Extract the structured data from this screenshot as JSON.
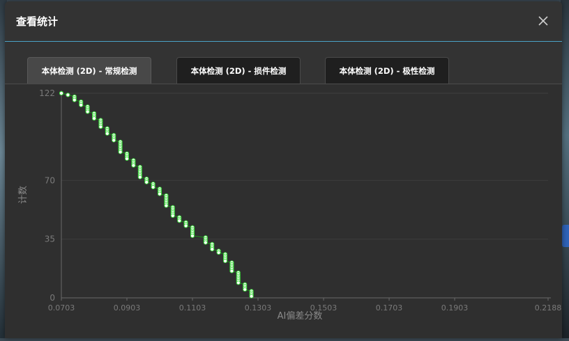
{
  "dialog": {
    "title": "查看统计",
    "close_icon": "close-icon"
  },
  "tabs": [
    {
      "label": "本体检测 (2D) - 常规检测",
      "active": true
    },
    {
      "label": "本体检测 (2D) - 损件检测",
      "active": false
    },
    {
      "label": "本体检测 (2D) - 极性检测",
      "active": false
    }
  ],
  "colors": {
    "accent_line": "#4aa3c8",
    "series_line": "#1f8a1f",
    "point_fill": "#ffffff",
    "point_stroke": "#39d639"
  },
  "chart_data": {
    "type": "scatter",
    "xlabel": "AI偏差分数",
    "ylabel": "计数",
    "xlim": [
      0.0703,
      0.2188
    ],
    "ylim": [
      0,
      122
    ],
    "x_ticks": [
      "0.0703",
      "0.0903",
      "0.1103",
      "0.1303",
      "0.1503",
      "0.1703",
      "0.1903",
      "0.2188"
    ],
    "y_ticks": [
      "0",
      "35",
      "70",
      "122"
    ],
    "x_tick_values": [
      0.0703,
      0.0903,
      0.1103,
      0.1303,
      0.1503,
      0.1703,
      0.1903,
      0.2188
    ],
    "y_tick_values": [
      0,
      35,
      70,
      122
    ],
    "grid": true,
    "points": [
      [
        0.0703,
        122
      ],
      [
        0.0723,
        121
      ],
      [
        0.0743,
        120
      ],
      [
        0.0743,
        119
      ],
      [
        0.0743,
        118
      ],
      [
        0.0763,
        117
      ],
      [
        0.0763,
        116
      ],
      [
        0.0763,
        115
      ],
      [
        0.0783,
        114
      ],
      [
        0.0783,
        113
      ],
      [
        0.0783,
        112
      ],
      [
        0.0783,
        111
      ],
      [
        0.0803,
        110
      ],
      [
        0.0803,
        109
      ],
      [
        0.0803,
        108
      ],
      [
        0.0803,
        107
      ],
      [
        0.0823,
        106
      ],
      [
        0.0823,
        105
      ],
      [
        0.0823,
        104
      ],
      [
        0.0823,
        103
      ],
      [
        0.0823,
        102
      ],
      [
        0.0843,
        101
      ],
      [
        0.0843,
        100
      ],
      [
        0.0843,
        99
      ],
      [
        0.0843,
        98
      ],
      [
        0.0863,
        97
      ],
      [
        0.0863,
        96
      ],
      [
        0.0863,
        95
      ],
      [
        0.0863,
        94
      ],
      [
        0.0883,
        93
      ],
      [
        0.0883,
        92
      ],
      [
        0.0883,
        91
      ],
      [
        0.0883,
        90
      ],
      [
        0.0883,
        89
      ],
      [
        0.0883,
        88
      ],
      [
        0.0883,
        87
      ],
      [
        0.0903,
        86
      ],
      [
        0.0903,
        85
      ],
      [
        0.0903,
        84
      ],
      [
        0.0903,
        83
      ],
      [
        0.0923,
        82
      ],
      [
        0.0923,
        81
      ],
      [
        0.0923,
        80
      ],
      [
        0.0923,
        79
      ],
      [
        0.0943,
        78
      ],
      [
        0.0943,
        77
      ],
      [
        0.0943,
        76
      ],
      [
        0.0943,
        75
      ],
      [
        0.0943,
        74
      ],
      [
        0.0943,
        73
      ],
      [
        0.0943,
        72
      ],
      [
        0.0963,
        71
      ],
      [
        0.0963,
        70
      ],
      [
        0.0963,
        69
      ],
      [
        0.0983,
        68
      ],
      [
        0.0983,
        67
      ],
      [
        0.0983,
        66
      ],
      [
        0.1003,
        65
      ],
      [
        0.1003,
        64
      ],
      [
        0.1003,
        63
      ],
      [
        0.1003,
        62
      ],
      [
        0.1023,
        61
      ],
      [
        0.1023,
        60
      ],
      [
        0.1023,
        59
      ],
      [
        0.1023,
        58
      ],
      [
        0.1023,
        57
      ],
      [
        0.1023,
        56
      ],
      [
        0.1023,
        55
      ],
      [
        0.1043,
        54
      ],
      [
        0.1043,
        53
      ],
      [
        0.1043,
        52
      ],
      [
        0.1043,
        51
      ],
      [
        0.1043,
        50
      ],
      [
        0.1043,
        49
      ],
      [
        0.1063,
        48
      ],
      [
        0.1063,
        47
      ],
      [
        0.1063,
        46
      ],
      [
        0.1083,
        45
      ],
      [
        0.1083,
        44
      ],
      [
        0.1083,
        43
      ],
      [
        0.1103,
        42
      ],
      [
        0.1103,
        41
      ],
      [
        0.1103,
        40
      ],
      [
        0.1103,
        39
      ],
      [
        0.1103,
        38
      ],
      [
        0.1103,
        37
      ],
      [
        0.1143,
        36
      ],
      [
        0.1143,
        35
      ],
      [
        0.1143,
        34
      ],
      [
        0.1143,
        33
      ],
      [
        0.1163,
        32
      ],
      [
        0.1163,
        31
      ],
      [
        0.1163,
        30
      ],
      [
        0.1163,
        29
      ],
      [
        0.1183,
        28
      ],
      [
        0.1183,
        27
      ],
      [
        0.1203,
        26
      ],
      [
        0.1203,
        25
      ],
      [
        0.1203,
        24
      ],
      [
        0.1203,
        23
      ],
      [
        0.1203,
        22
      ],
      [
        0.1223,
        21
      ],
      [
        0.1223,
        20
      ],
      [
        0.1223,
        19
      ],
      [
        0.1223,
        18
      ],
      [
        0.1223,
        17
      ],
      [
        0.1223,
        16
      ],
      [
        0.1243,
        15
      ],
      [
        0.1243,
        14
      ],
      [
        0.1243,
        13
      ],
      [
        0.1243,
        12
      ],
      [
        0.1243,
        11
      ],
      [
        0.1243,
        10
      ],
      [
        0.1243,
        9
      ],
      [
        0.1263,
        8
      ],
      [
        0.1263,
        7
      ],
      [
        0.1263,
        6
      ],
      [
        0.1263,
        5
      ],
      [
        0.1283,
        4
      ],
      [
        0.1283,
        3
      ],
      [
        0.1283,
        2
      ],
      [
        0.1283,
        1
      ]
    ]
  }
}
